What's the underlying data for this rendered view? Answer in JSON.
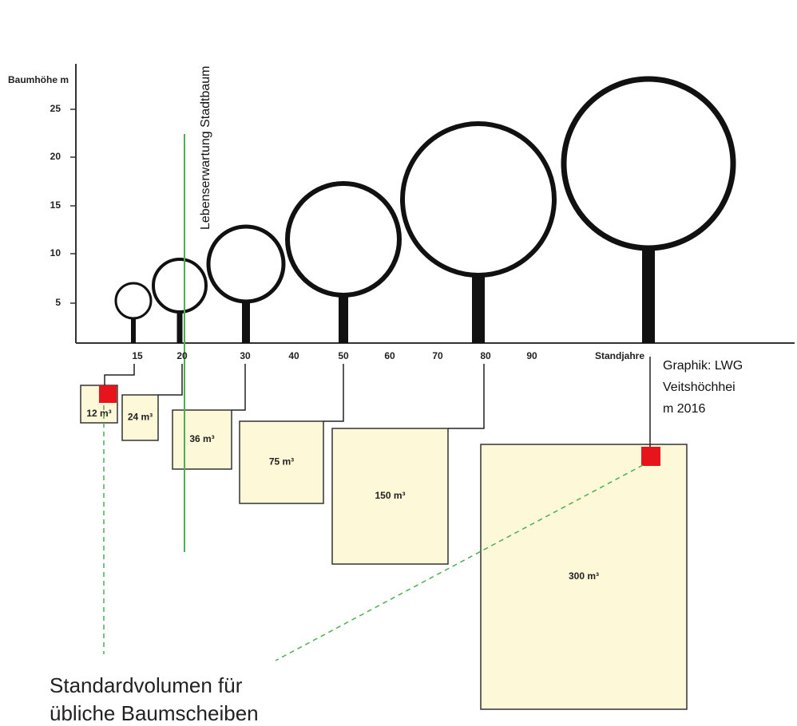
{
  "y_axis": {
    "label": "Baumhöhe m",
    "ticks": [
      "5",
      "10",
      "15",
      "20",
      "25"
    ]
  },
  "x_axis": {
    "label": "Standjahre",
    "ticks": [
      "15",
      "20",
      "30",
      "40",
      "50",
      "60",
      "70",
      "80",
      "90"
    ]
  },
  "annotation": "Lebenserwartung Stadtbaum",
  "volumes": [
    "12 m³",
    "24 m³",
    "36 m³",
    "75 m³",
    "150 m³",
    "300 m³"
  ],
  "credit": [
    "Graphik: LWG",
    "Veitshöchhei",
    "m 2016"
  ],
  "caption": [
    "Standardvolumen für",
    "übliche Baumscheiben"
  ]
}
